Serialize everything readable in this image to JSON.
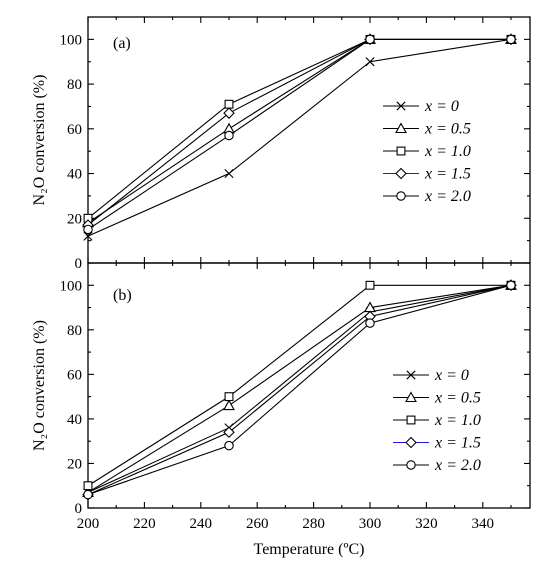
{
  "chart_data": [
    {
      "type": "line",
      "panel_label": "(a)",
      "x": [
        200,
        250,
        300,
        350
      ],
      "xlim": [
        200,
        350
      ],
      "ylim": [
        0,
        110
      ],
      "xticks": [
        200,
        220,
        240,
        260,
        280,
        300,
        320,
        340
      ],
      "yticks": [
        0,
        20,
        40,
        60,
        80,
        100
      ],
      "ylabel": "N₂O conversion (%)",
      "legend_position": "center-right",
      "series": [
        {
          "name": "x = 0",
          "marker": "x",
          "color": "#000000",
          "values": [
            12,
            40,
            90,
            100
          ]
        },
        {
          "name": "x = 0.5",
          "marker": "triangle",
          "color": "#000000",
          "values": [
            18,
            60,
            100,
            100
          ]
        },
        {
          "name": "x = 1.0",
          "marker": "square",
          "color": "#000000",
          "values": [
            20,
            71,
            100,
            100
          ]
        },
        {
          "name": "x = 1.5",
          "marker": "diamond",
          "color": "#1a1ae6",
          "values": [
            17,
            67,
            100,
            100
          ]
        },
        {
          "name": "x = 2.0",
          "marker": "circle",
          "color": "#000000",
          "values": [
            15,
            57,
            100,
            100
          ]
        }
      ]
    },
    {
      "type": "line",
      "panel_label": "(b)",
      "x": [
        200,
        250,
        300,
        350
      ],
      "xlim": [
        200,
        350
      ],
      "ylim": [
        0,
        110
      ],
      "xticks": [
        200,
        220,
        240,
        260,
        280,
        300,
        320,
        340
      ],
      "yticks": [
        0,
        20,
        40,
        60,
        80,
        100
      ],
      "ylabel": "N₂O conversion (%)",
      "xlabel": "Temperature (ºC)",
      "legend_position": "lower-right",
      "series": [
        {
          "name": "x = 0",
          "marker": "x",
          "color": "#000000",
          "values": [
            7,
            36,
            88,
            100
          ]
        },
        {
          "name": "x = 0.5",
          "marker": "triangle",
          "color": "#000000",
          "values": [
            7,
            46,
            90,
            100
          ]
        },
        {
          "name": "x = 1.0",
          "marker": "square",
          "color": "#000000",
          "values": [
            10,
            50,
            100,
            100
          ]
        },
        {
          "name": "x = 1.5",
          "marker": "diamond",
          "color": "#1a1ae6",
          "values": [
            6,
            34,
            86,
            100
          ]
        },
        {
          "name": "x = 2.0",
          "marker": "circle",
          "color": "#000000",
          "values": [
            6,
            28,
            83,
            100
          ]
        }
      ]
    }
  ]
}
